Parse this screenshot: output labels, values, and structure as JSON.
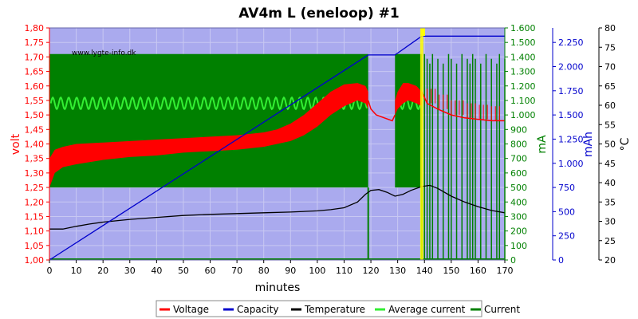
{
  "chart_data": {
    "type": "line",
    "title": "AV4m L (eneloop) #1",
    "watermark": "www.lygte-info.dk",
    "xlabel": "minutes",
    "xlim": [
      0,
      170
    ],
    "xticks": [
      "0",
      "10",
      "20",
      "30",
      "40",
      "50",
      "60",
      "70",
      "80",
      "90",
      "100",
      "110",
      "120",
      "130",
      "140",
      "150",
      "160",
      "170"
    ],
    "axes": {
      "voltage": {
        "label": "volt",
        "color": "#ff0000",
        "range": [
          1.0,
          1.8
        ],
        "ticks": [
          "1,00",
          "1,05",
          "1,10",
          "1,15",
          "1,20",
          "1,25",
          "1,30",
          "1,35",
          "1,40",
          "1,45",
          "1,50",
          "1,55",
          "1,60",
          "1,65",
          "1,70",
          "1,75",
          "1,80"
        ]
      },
      "current": {
        "label": "mA",
        "color": "#008000",
        "range": [
          0,
          1600
        ],
        "ticks": [
          "0",
          "100",
          "200",
          "300",
          "400",
          "500",
          "600",
          "700",
          "800",
          "900",
          "1.000",
          "1.100",
          "1.200",
          "1.300",
          "1.400",
          "1.500",
          "1.600"
        ]
      },
      "capacity": {
        "label": "mAh",
        "color": "#0000cc",
        "range": [
          0,
          2400
        ],
        "ticks": [
          "0",
          "250",
          "500",
          "750",
          "1.000",
          "1.250",
          "1.500",
          "1.750",
          "2.000",
          "2.250"
        ]
      },
      "temperature": {
        "label": "°C",
        "color": "#000000",
        "range": [
          20,
          80
        ],
        "ticks": [
          "20",
          "25",
          "30",
          "35",
          "40",
          "45",
          "50",
          "55",
          "60",
          "65",
          "70",
          "75",
          "80"
        ]
      }
    },
    "colors": {
      "plot_bg": "#aaaaee",
      "grid": "#c8c8f2",
      "yellow_marker": "#ffff00"
    },
    "series": [
      {
        "name": "Voltage",
        "axis": "voltage",
        "color": "#ff0000",
        "upper": [
          [
            0,
            1.35
          ],
          [
            2,
            1.38
          ],
          [
            5,
            1.39
          ],
          [
            10,
            1.4
          ],
          [
            20,
            1.405
          ],
          [
            30,
            1.41
          ],
          [
            40,
            1.415
          ],
          [
            50,
            1.42
          ],
          [
            60,
            1.425
          ],
          [
            70,
            1.43
          ],
          [
            80,
            1.44
          ],
          [
            85,
            1.45
          ],
          [
            90,
            1.47
          ],
          [
            95,
            1.5
          ],
          [
            100,
            1.54
          ],
          [
            105,
            1.58
          ],
          [
            110,
            1.605
          ],
          [
            115,
            1.61
          ],
          [
            118,
            1.6
          ],
          [
            119,
            1.58
          ]
        ],
        "lower": [
          [
            0,
            1.25
          ],
          [
            2,
            1.3
          ],
          [
            5,
            1.32
          ],
          [
            10,
            1.33
          ],
          [
            20,
            1.345
          ],
          [
            30,
            1.355
          ],
          [
            40,
            1.36
          ],
          [
            50,
            1.37
          ],
          [
            60,
            1.375
          ],
          [
            70,
            1.38
          ],
          [
            80,
            1.39
          ],
          [
            85,
            1.4
          ],
          [
            90,
            1.41
          ],
          [
            95,
            1.43
          ],
          [
            100,
            1.46
          ],
          [
            105,
            1.5
          ],
          [
            110,
            1.53
          ],
          [
            115,
            1.55
          ],
          [
            118,
            1.54
          ],
          [
            119,
            1.52
          ]
        ],
        "upper2": [
          [
            129,
            1.55
          ],
          [
            130,
            1.58
          ],
          [
            132,
            1.61
          ],
          [
            134,
            1.61
          ],
          [
            137,
            1.6
          ],
          [
            139,
            1.58
          ]
        ],
        "lower2": [
          [
            129,
            1.5
          ],
          [
            130,
            1.52
          ],
          [
            132,
            1.54
          ],
          [
            134,
            1.55
          ],
          [
            137,
            1.54
          ],
          [
            139,
            1.53
          ]
        ],
        "rest": [
          [
            119,
            1.55
          ],
          [
            120,
            1.52
          ],
          [
            122,
            1.5
          ],
          [
            125,
            1.49
          ],
          [
            128,
            1.48
          ],
          [
            129,
            1.5
          ]
        ],
        "tail": [
          [
            139,
            1.58
          ],
          [
            141,
            1.54
          ],
          [
            145,
            1.52
          ],
          [
            150,
            1.5
          ],
          [
            155,
            1.49
          ],
          [
            160,
            1.485
          ],
          [
            165,
            1.48
          ],
          [
            170,
            1.48
          ]
        ]
      },
      {
        "name": "Capacity",
        "axis": "capacity",
        "color": "#0000cc",
        "points": [
          [
            0,
            0
          ],
          [
            119,
            2120
          ],
          [
            129,
            2120
          ],
          [
            139,
            2315
          ],
          [
            170,
            2315
          ]
        ]
      },
      {
        "name": "Temperature",
        "axis": "temperature",
        "color": "#000000",
        "points": [
          [
            0,
            28
          ],
          [
            5,
            28
          ],
          [
            10,
            28.7
          ],
          [
            15,
            29.3
          ],
          [
            20,
            29.8
          ],
          [
            30,
            30.5
          ],
          [
            40,
            31
          ],
          [
            50,
            31.5
          ],
          [
            60,
            31.8
          ],
          [
            70,
            32
          ],
          [
            80,
            32.2
          ],
          [
            90,
            32.4
          ],
          [
            100,
            32.7
          ],
          [
            105,
            33
          ],
          [
            110,
            33.5
          ],
          [
            115,
            35
          ],
          [
            118,
            37
          ],
          [
            120,
            38
          ],
          [
            123,
            38.2
          ],
          [
            126,
            37.5
          ],
          [
            129,
            36.5
          ],
          [
            132,
            37
          ],
          [
            135,
            38
          ],
          [
            139,
            39
          ],
          [
            142,
            39.3
          ],
          [
            145,
            38.5
          ],
          [
            150,
            36.5
          ],
          [
            155,
            35
          ],
          [
            160,
            33.8
          ],
          [
            165,
            32.8
          ],
          [
            170,
            32.2
          ]
        ]
      },
      {
        "name": "Average current",
        "axis": "current",
        "color": "#33ee33",
        "level": 1080,
        "amplitude": 40,
        "periods": 40
      },
      {
        "name": "Current",
        "axis": "current",
        "color": "#008000",
        "on_level": 1420,
        "off_level": 500,
        "spans": [
          [
            0,
            119
          ],
          [
            129,
            139
          ]
        ],
        "spikes": [
          140,
          141,
          142,
          143,
          145,
          147,
          149,
          150,
          152,
          154,
          156,
          157,
          158,
          159,
          161,
          163,
          165,
          167,
          168,
          170
        ]
      }
    ],
    "legend_position": "bottom"
  }
}
